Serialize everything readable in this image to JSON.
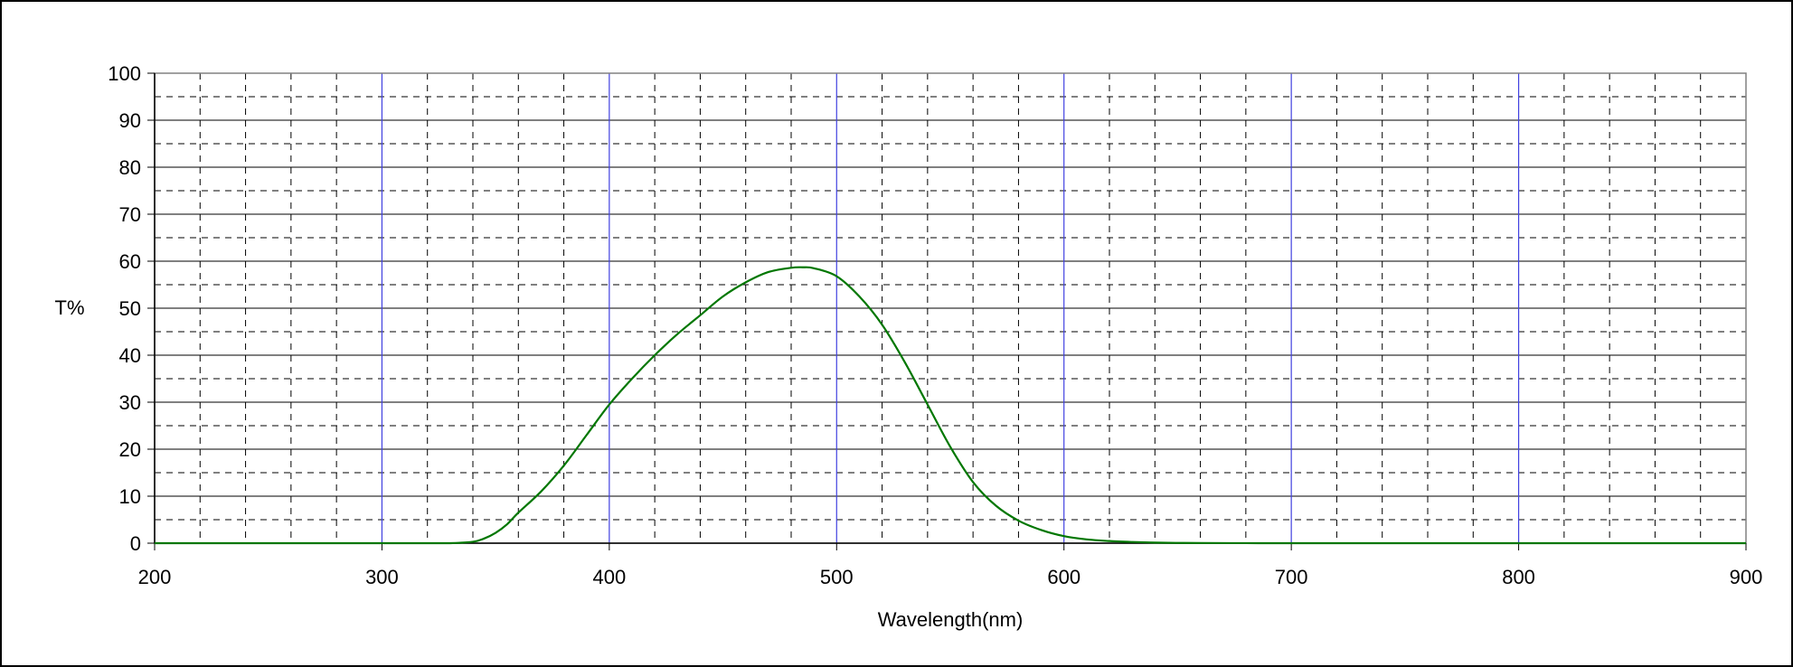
{
  "chart_data": {
    "type": "line",
    "title": "",
    "xlabel": "Wavelength(nm)",
    "ylabel": "T%",
    "xlim": [
      200,
      900
    ],
    "ylim": [
      0,
      100
    ],
    "x_ticks": [
      "200",
      "300",
      "400",
      "500",
      "600",
      "700",
      "800",
      "900"
    ],
    "y_ticks": [
      "0",
      "10",
      "20",
      "30",
      "40",
      "50",
      "60",
      "70",
      "80",
      "90",
      "100"
    ],
    "grid": true,
    "legend": "none",
    "colors": {
      "series": "#007700",
      "major_vertical_grid": "#4040e0",
      "major_horizontal_grid": "#000000",
      "minor_grid": "#000000"
    },
    "series": [
      {
        "x": [
          200,
          250,
          300,
          320,
          330,
          340,
          345,
          350,
          355,
          360,
          370,
          380,
          390,
          400,
          410,
          420,
          430,
          440,
          450,
          460,
          470,
          480,
          485,
          490,
          500,
          510,
          520,
          530,
          540,
          550,
          560,
          570,
          580,
          590,
          600,
          610,
          620,
          630,
          640,
          650,
          660,
          680,
          700,
          750,
          800,
          850,
          900
        ],
        "y": [
          0,
          0,
          0,
          0,
          0,
          0.3,
          1.0,
          2.2,
          4.0,
          6.5,
          11.0,
          16.5,
          23.0,
          29.5,
          35.0,
          40.0,
          44.5,
          48.5,
          52.5,
          55.5,
          57.7,
          58.6,
          58.7,
          58.5,
          56.8,
          52.5,
          46.5,
          38.5,
          29.5,
          20.5,
          13.0,
          8.0,
          4.8,
          2.8,
          1.5,
          0.8,
          0.45,
          0.25,
          0.12,
          0.06,
          0.03,
          0.01,
          0,
          0,
          0,
          0,
          0
        ]
      }
    ]
  }
}
